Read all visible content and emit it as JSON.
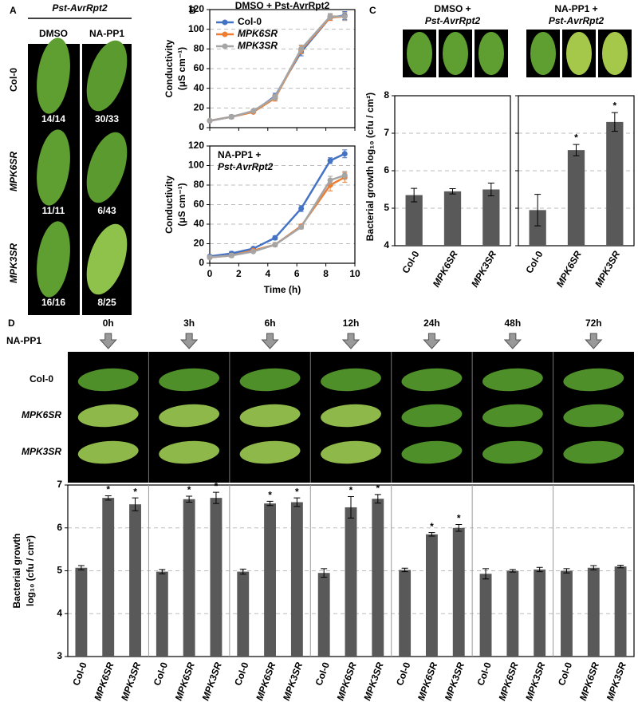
{
  "panel_labels": [
    "A",
    "B",
    "C",
    "D"
  ],
  "panel_a": {
    "header": "Pst-AvrRpt2",
    "columns": [
      "DMSO",
      "NA-PP1"
    ],
    "rows": [
      "Col-0",
      "MPK6SR",
      "MPK3SR"
    ],
    "counts": [
      [
        "14/14",
        "30/33"
      ],
      [
        "11/11",
        "6/43"
      ],
      [
        "16/16",
        "8/25"
      ]
    ]
  },
  "panel_d": {
    "treatment": "NA-PP1",
    "rows": [
      "Col-0",
      "MPK6SR",
      "MPK3SR"
    ]
  },
  "chart_data": [
    {
      "type": "line",
      "title": [
        "DMSO + Pst-AvrRpt2"
      ],
      "ylabel": [
        "Conductivity",
        "(μS cm⁻¹)"
      ],
      "x": [
        0,
        1.5,
        3,
        4.5,
        6.3,
        8.3,
        9.3
      ],
      "xlim": [
        0,
        10
      ],
      "xticks": [
        0,
        2,
        4,
        6,
        8,
        10
      ],
      "xtick_labels": false,
      "ylim": [
        0,
        120
      ],
      "yticks": [
        0,
        20,
        40,
        60,
        80,
        100,
        120
      ],
      "grid": true,
      "legend": "upper left",
      "series": [
        {
          "name": "Col-0",
          "color": "#4472c4",
          "values": [
            7,
            11,
            16,
            32,
            77,
            112,
            114
          ],
          "errors": [
            1,
            2,
            1,
            3,
            4,
            3,
            4
          ]
        },
        {
          "name": "MPK6SR",
          "color": "#ed7d31",
          "values": [
            7,
            11,
            16,
            30,
            79,
            112,
            113
          ],
          "errors": [
            1,
            2,
            1,
            3,
            4,
            3,
            4
          ]
        },
        {
          "name": "MPK3SR",
          "color": "#a5a5a5",
          "values": [
            7,
            11,
            17,
            31,
            80,
            113,
            113
          ],
          "errors": [
            1,
            2,
            1,
            3,
            4,
            3,
            4
          ]
        }
      ]
    },
    {
      "type": "line",
      "title": [
        "NA-PP1 +",
        "Pst-AvrRpt2"
      ],
      "ylabel": [
        "Conductivity",
        "(μS cm⁻¹)"
      ],
      "xlabel": "Time (h)",
      "x": [
        0,
        1.5,
        3,
        4.5,
        6.3,
        8.3,
        9.3
      ],
      "xlim": [
        0,
        10
      ],
      "xticks": [
        0,
        2,
        4,
        6,
        8,
        10
      ],
      "ylim": [
        0,
        120
      ],
      "yticks": [
        0,
        20,
        40,
        60,
        80,
        100,
        120
      ],
      "grid": true,
      "series": [
        {
          "name": "Col-0",
          "color": "#4472c4",
          "values": [
            7,
            10,
            15,
            26,
            56,
            105,
            112
          ],
          "errors": [
            1,
            2,
            1,
            2,
            3,
            3,
            4
          ]
        },
        {
          "name": "MPK6SR",
          "color": "#ed7d31",
          "values": [
            6,
            8,
            13,
            19,
            38,
            80,
            88
          ],
          "errors": [
            1,
            2,
            1,
            2,
            2,
            6,
            5
          ]
        },
        {
          "name": "MPK3SR",
          "color": "#a5a5a5",
          "values": [
            6,
            8,
            12,
            19,
            37,
            85,
            90
          ],
          "errors": [
            1,
            2,
            1,
            2,
            2,
            4,
            4
          ]
        }
      ]
    },
    {
      "type": "bar",
      "title": [
        "DMSO +",
        "Pst-AvrRpt2"
      ],
      "ylabel": "Bacterial growth log₁₀ (cfu / cm²)",
      "categories": [
        "Col-0",
        "MPK6SR",
        "MPK3SR"
      ],
      "values": [
        5.35,
        5.45,
        5.5
      ],
      "errors": [
        0.18,
        0.07,
        0.17
      ],
      "significance": [
        null,
        null,
        null
      ],
      "color": "#595959",
      "ylim": [
        4,
        8
      ],
      "yticks": [
        4,
        5,
        6,
        7,
        8
      ],
      "grid": true
    },
    {
      "type": "bar",
      "title": [
        "NA-PP1 +",
        "Pst-AvrRpt2"
      ],
      "categories": [
        "Col-0",
        "MPK6SR",
        "MPK3SR"
      ],
      "values": [
        4.95,
        6.55,
        7.3
      ],
      "errors": [
        0.42,
        0.15,
        0.25
      ],
      "significance": [
        null,
        "*",
        "*"
      ],
      "color": "#595959",
      "ylim": [
        4,
        8
      ],
      "yticks": [
        4,
        5,
        6,
        7,
        8
      ],
      "ytick_labels": false,
      "grid": true
    },
    {
      "type": "grouped_bar",
      "ylabel": [
        "Bacterial growth",
        "log₁₀ (cfu / cm²)"
      ],
      "categories": [
        "Col-0",
        "MPK6SR",
        "MPK3SR"
      ],
      "color": "#595959",
      "ylim": [
        3,
        7
      ],
      "yticks": [
        3,
        4,
        5,
        6,
        7
      ],
      "grid": true,
      "groups": [
        {
          "name": "0h",
          "values": [
            5.07,
            6.7,
            6.55
          ],
          "errors": [
            0.05,
            0.05,
            0.15
          ],
          "significance": [
            null,
            "*",
            "*"
          ]
        },
        {
          "name": "3h",
          "values": [
            4.98,
            6.67,
            6.7
          ],
          "errors": [
            0.05,
            0.07,
            0.13
          ],
          "significance": [
            null,
            "*",
            "*"
          ]
        },
        {
          "name": "6h",
          "values": [
            4.98,
            6.57,
            6.6
          ],
          "errors": [
            0.06,
            0.05,
            0.1
          ],
          "significance": [
            null,
            "*",
            "*"
          ]
        },
        {
          "name": "12h",
          "values": [
            4.95,
            6.48,
            6.68
          ],
          "errors": [
            0.1,
            0.25,
            0.1
          ],
          "significance": [
            null,
            "*",
            "*"
          ]
        },
        {
          "name": "24h",
          "values": [
            5.02,
            5.85,
            6.0
          ],
          "errors": [
            0.04,
            0.04,
            0.08
          ],
          "significance": [
            null,
            "*",
            "*"
          ]
        },
        {
          "name": "48h",
          "values": [
            4.93,
            5.0,
            5.03
          ],
          "errors": [
            0.12,
            0.03,
            0.05
          ],
          "significance": [
            null,
            null,
            null
          ]
        },
        {
          "name": "72h",
          "values": [
            5.0,
            5.07,
            5.1
          ],
          "errors": [
            0.05,
            0.05,
            0.03
          ],
          "significance": [
            null,
            null,
            null
          ]
        }
      ]
    }
  ]
}
